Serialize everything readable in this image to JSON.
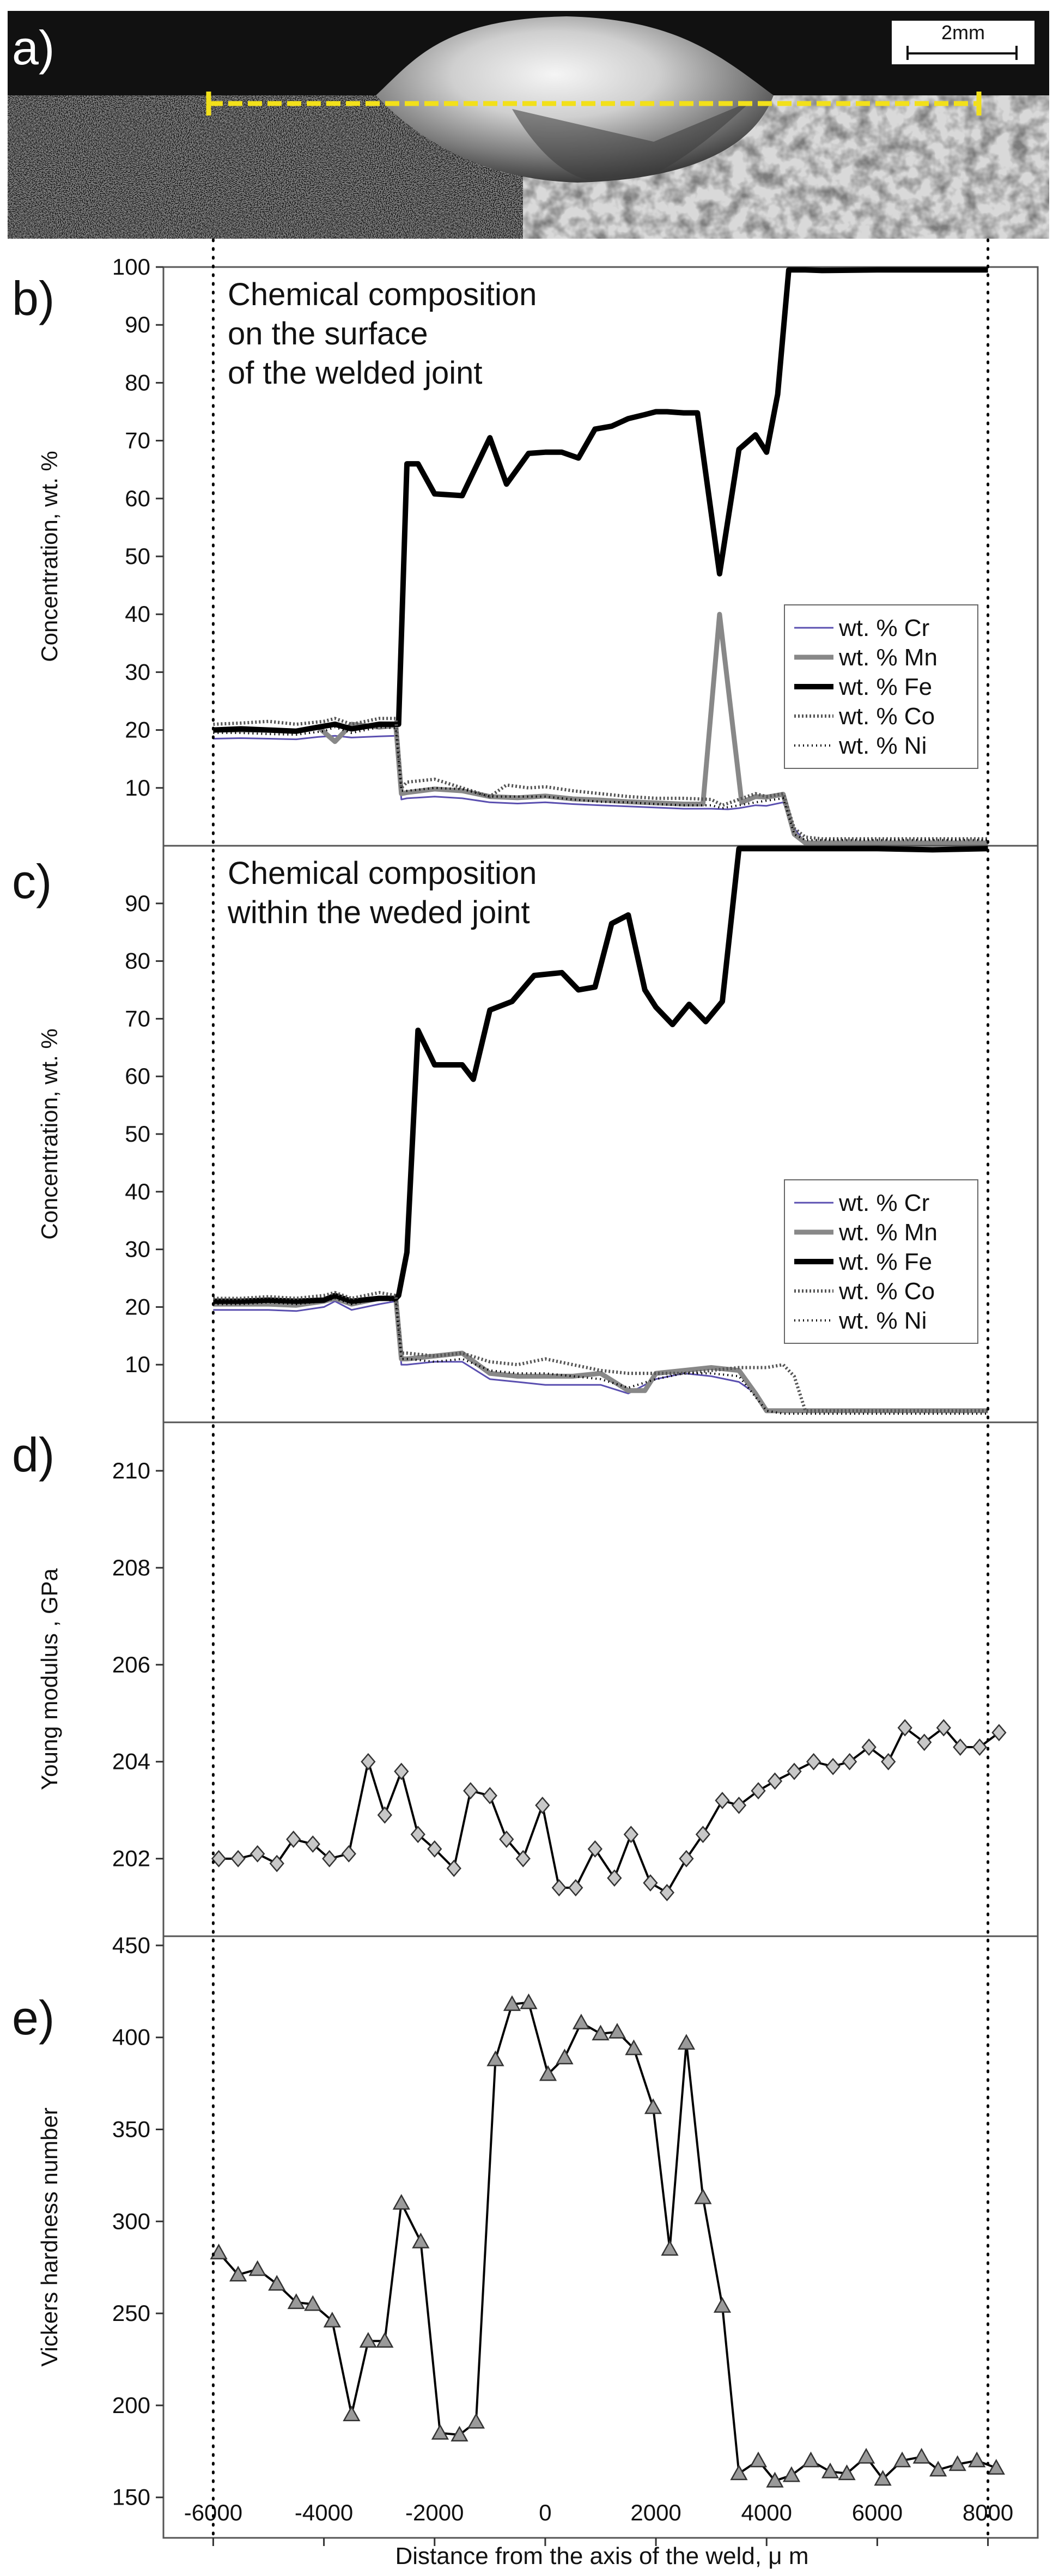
{
  "panels": {
    "a": "a)",
    "b": "b)",
    "c": "c)",
    "d": "d)",
    "e": "e)"
  },
  "micrograph": {
    "scale_bar_label": "2mm",
    "line_color": "#f2e01a"
  },
  "x_axis": {
    "label": "Distance from the axis of the weld, μ m",
    "ticks": [
      -6000,
      -4000,
      -2000,
      0,
      2000,
      4000,
      6000,
      8000
    ],
    "range": [
      -6900,
      8900
    ],
    "dotted_lines_at": [
      -6000,
      8000
    ]
  },
  "colors": {
    "cr": "#5a4fb0",
    "mn": "#888888",
    "fe": "#000000",
    "co": "#555555",
    "ni": "#000000"
  },
  "chart_data": [
    {
      "id": "b",
      "type": "line",
      "note": [
        "Chemical composition",
        "on the surface",
        "of the welded joint"
      ],
      "ylabel": "Concentration, wt. %",
      "ylim": [
        0,
        100
      ],
      "yticks": [
        10,
        20,
        30,
        40,
        50,
        60,
        70,
        80,
        90,
        100
      ],
      "legend": [
        "wt. % Cr",
        "wt. % Mn",
        "wt. % Fe",
        "wt. % Co",
        "wt. % Ni"
      ],
      "series": [
        {
          "name": "wt. % Cr",
          "x": [
            -6000,
            -5500,
            -5000,
            -4500,
            -4100,
            -3800,
            -3500,
            -3000,
            -2700,
            -2600,
            -2500,
            -2000,
            -1500,
            -1000,
            -500,
            0,
            500,
            1000,
            1500,
            2000,
            2500,
            3000,
            3300,
            3500,
            3800,
            4000,
            4300,
            4500,
            4700,
            5000,
            6000,
            7000,
            8000
          ],
          "values": [
            18.5,
            18.6,
            18.5,
            18.4,
            18.8,
            19.0,
            18.7,
            18.9,
            19.0,
            8,
            8.2,
            8.5,
            8.2,
            7.5,
            7.3,
            7.5,
            7.2,
            7.0,
            6.8,
            6.6,
            6.4,
            6.4,
            6.3,
            6.5,
            7.0,
            6.9,
            7.5,
            3,
            0.5,
            0.5,
            0.5,
            0.5,
            0.5
          ]
        },
        {
          "name": "wt. % Mn",
          "x": [
            -6000,
            -5500,
            -5000,
            -4500,
            -4100,
            -3800,
            -3500,
            -3000,
            -2700,
            -2600,
            -2500,
            -2000,
            -1500,
            -1000,
            -500,
            0,
            500,
            1000,
            1500,
            2000,
            2500,
            2850,
            3150,
            3550,
            3800,
            4000,
            4300,
            4500,
            4700,
            5000,
            6000,
            7000,
            8000
          ],
          "values": [
            20,
            20,
            20,
            19.8,
            20.5,
            18,
            21,
            20.5,
            20.8,
            9,
            9.2,
            9.8,
            9.5,
            8.5,
            8.3,
            8.6,
            8.1,
            7.9,
            7.6,
            7.4,
            7.2,
            7.2,
            40,
            7.5,
            8.5,
            8.4,
            8.9,
            2,
            0.5,
            0.5,
            0.5,
            0.5,
            0.5
          ]
        },
        {
          "name": "wt. % Fe",
          "x": [
            -6000,
            -5500,
            -5000,
            -4500,
            -4100,
            -3800,
            -3500,
            -3000,
            -2700,
            -2650,
            -2500,
            -2300,
            -2000,
            -1500,
            -1000,
            -700,
            -300,
            0,
            300,
            600,
            900,
            1200,
            1500,
            1800,
            2000,
            2200,
            2500,
            2750,
            3150,
            3500,
            3800,
            4000,
            4200,
            4400,
            4600,
            4700,
            5000,
            6000,
            7000,
            8000
          ],
          "values": [
            20,
            20.2,
            20,
            19.8,
            20.5,
            21,
            20.2,
            21,
            21,
            21,
            66,
            66,
            60.8,
            60.5,
            70.5,
            62.5,
            67.8,
            68,
            68,
            67,
            72,
            72.5,
            73.8,
            74.5,
            75,
            75,
            74.8,
            74.8,
            47,
            68.5,
            71,
            68,
            78,
            99.5,
            99.5,
            99.5,
            99.4,
            99.5,
            99.5,
            99.5
          ]
        },
        {
          "name": "wt. % Co",
          "x": [
            -6000,
            -5500,
            -5000,
            -4500,
            -4000,
            -3800,
            -3500,
            -3000,
            -2700,
            -2600,
            -2500,
            -2000,
            -1500,
            -1000,
            -700,
            -300,
            0,
            500,
            1000,
            1500,
            2000,
            2500,
            3000,
            3200,
            3500,
            3800,
            4000,
            4300,
            4500,
            4700,
            5000,
            6000,
            7000,
            8000
          ],
          "values": [
            21,
            21.2,
            21.5,
            21,
            21.5,
            22,
            21,
            22,
            22,
            10,
            11,
            11.5,
            10,
            8.5,
            10.5,
            10,
            10.2,
            9.5,
            9,
            8.5,
            8.2,
            8.2,
            8,
            7,
            8,
            9,
            8.5,
            9,
            3,
            1.5,
            1.2,
            1.2,
            1.2,
            1.2
          ]
        },
        {
          "name": "wt. % Ni",
          "x": [
            -6000,
            -5500,
            -5000,
            -4500,
            -4000,
            -3800,
            -3500,
            -3000,
            -2700,
            -2600,
            -2500,
            -2000,
            -1500,
            -1000,
            -500,
            0,
            500,
            1000,
            1500,
            2000,
            2500,
            3000,
            3200,
            3500,
            3800,
            4000,
            4300,
            4500,
            4700,
            5000,
            6000,
            7000,
            8000
          ],
          "values": [
            19.5,
            19.5,
            19.3,
            19.2,
            19.8,
            20.5,
            19.5,
            20.5,
            20.3,
            9.5,
            9.5,
            10,
            9.8,
            8.5,
            8.5,
            8.5,
            8,
            7.6,
            7.5,
            7.2,
            7,
            7,
            6.5,
            7,
            7.5,
            7.8,
            8.2,
            2,
            1,
            1,
            1,
            1,
            1
          ]
        }
      ]
    },
    {
      "id": "c",
      "type": "line",
      "note": [
        "Chemical composition",
        "within the weded joint"
      ],
      "ylabel": "Concentration, wt. %",
      "ylim": [
        0,
        100
      ],
      "yticks": [
        10,
        20,
        30,
        40,
        50,
        60,
        70,
        80,
        90
      ],
      "legend": [
        "wt. % Cr",
        "wt. % Mn",
        "wt. % Fe",
        "wt. % Co",
        "wt. % Ni"
      ],
      "series": [
        {
          "name": "wt. % Cr",
          "x": [
            -6000,
            -5500,
            -5000,
            -4500,
            -4000,
            -3800,
            -3500,
            -3000,
            -2700,
            -2600,
            -2500,
            -2000,
            -1500,
            -1000,
            -500,
            0,
            500,
            1000,
            1500,
            2000,
            2500,
            3000,
            3500,
            3800,
            4000,
            4300,
            4700,
            5000,
            6000,
            7000,
            8000
          ],
          "values": [
            19.5,
            19.5,
            19.5,
            19.3,
            20,
            21,
            19.5,
            20.5,
            21,
            10,
            10,
            10.5,
            10.5,
            7.5,
            7,
            6.5,
            6.5,
            6.5,
            5,
            7.5,
            8.5,
            8,
            7,
            5,
            2,
            2,
            2,
            2,
            2,
            2,
            2
          ]
        },
        {
          "name": "wt. % Mn",
          "x": [
            -6000,
            -5500,
            -5000,
            -4500,
            -4000,
            -3800,
            -3500,
            -3000,
            -2700,
            -2600,
            -2500,
            -2000,
            -1500,
            -1000,
            -500,
            0,
            500,
            1000,
            1500,
            1800,
            2000,
            2500,
            3000,
            3500,
            3800,
            4000,
            4300,
            4700,
            5000,
            6000,
            7000,
            8000
          ],
          "values": [
            20.5,
            20.5,
            20.5,
            20.3,
            21,
            21.5,
            20.5,
            21.5,
            21.5,
            11,
            11,
            11.5,
            12,
            8.5,
            8,
            8,
            8,
            8.5,
            5.5,
            5.5,
            8.5,
            9,
            9.5,
            9,
            5,
            2,
            2,
            2,
            2,
            2,
            2,
            2
          ]
        },
        {
          "name": "wt. % Fe",
          "x": [
            -6000,
            -5500,
            -5000,
            -4500,
            -4000,
            -3800,
            -3500,
            -3000,
            -2700,
            -2650,
            -2500,
            -2300,
            -2000,
            -1500,
            -1300,
            -1000,
            -600,
            -200,
            300,
            600,
            900,
            1200,
            1500,
            1800,
            2000,
            2300,
            2600,
            2900,
            3200,
            3500,
            3800,
            4000,
            4300,
            4600,
            5000,
            6000,
            7000,
            8000
          ],
          "values": [
            21,
            21,
            21.2,
            21,
            21.2,
            22,
            21,
            21.5,
            21.5,
            22,
            29.5,
            68,
            62,
            62,
            59.5,
            71.5,
            73,
            77.5,
            78,
            75,
            75.5,
            86.5,
            88,
            75,
            72,
            69,
            72.5,
            69.5,
            73,
            99.5,
            99.5,
            99.5,
            99.5,
            99.5,
            99.5,
            99.5,
            99.3,
            99.5
          ]
        },
        {
          "name": "wt. % Co",
          "x": [
            -6000,
            -5500,
            -5000,
            -4500,
            -4000,
            -3800,
            -3500,
            -3000,
            -2700,
            -2600,
            -2500,
            -2000,
            -1500,
            -1000,
            -500,
            0,
            500,
            1000,
            1500,
            2000,
            2500,
            3000,
            3500,
            4000,
            4300,
            4500,
            4700,
            5000,
            6000,
            7000,
            8000
          ],
          "values": [
            21.5,
            21.5,
            21.8,
            21.5,
            22,
            22.5,
            21.5,
            22.5,
            22,
            12,
            12,
            11.5,
            12,
            10.5,
            10,
            11,
            10,
            9,
            8.5,
            8.5,
            8.5,
            9,
            9.5,
            9.5,
            10,
            8,
            2,
            2,
            2,
            2,
            2
          ]
        },
        {
          "name": "wt. % Ni",
          "x": [
            -6000,
            -5500,
            -5000,
            -4500,
            -4000,
            -3800,
            -3500,
            -3000,
            -2700,
            -2600,
            -2500,
            -2000,
            -1500,
            -1000,
            -500,
            0,
            500,
            1000,
            1500,
            2000,
            2500,
            3000,
            3500,
            4000,
            4300,
            4700,
            5000,
            6000,
            7000,
            8000
          ],
          "values": [
            20.5,
            20.5,
            20.8,
            20.5,
            21,
            21.5,
            20.5,
            21.5,
            21,
            11,
            11,
            10.5,
            11,
            9,
            8.5,
            8.5,
            8,
            7.5,
            6,
            7.5,
            8.5,
            8.5,
            8,
            2,
            1.5,
            1.5,
            1.5,
            1.5,
            1.5,
            1.5
          ]
        }
      ]
    },
    {
      "id": "d",
      "type": "line",
      "ylabel": "Young modulus , GPa",
      "ylim": [
        200.4,
        211
      ],
      "yticks": [
        202,
        204,
        206,
        208,
        210
      ],
      "marker": "diamond",
      "series": [
        {
          "name": "Young modulus",
          "x": [
            -5900,
            -5550,
            -5200,
            -4850,
            -4550,
            -4200,
            -3900,
            -3550,
            -3200,
            -2900,
            -2600,
            -2300,
            -2000,
            -1650,
            -1350,
            -1000,
            -700,
            -400,
            -50,
            250,
            550,
            900,
            1250,
            1550,
            1900,
            2200,
            2550,
            2850,
            3200,
            3500,
            3850,
            4150,
            4500,
            4850,
            5200,
            5500,
            5850,
            6200,
            6500,
            6850,
            7200,
            7500,
            7850,
            8200
          ],
          "values": [
            202,
            202,
            202.1,
            201.9,
            202.4,
            202.3,
            202,
            202.1,
            204,
            202.9,
            203.8,
            202.5,
            202.2,
            201.8,
            203.4,
            203.3,
            202.4,
            202,
            203.1,
            201.4,
            201.4,
            202.2,
            201.6,
            202.5,
            201.5,
            201.3,
            202,
            202.5,
            203.2,
            203.1,
            203.4,
            203.6,
            203.8,
            204,
            203.9,
            204,
            204.3,
            204,
            204.7,
            204.4,
            204.7,
            204.3,
            204.3,
            204.6
          ]
        }
      ]
    },
    {
      "id": "e",
      "type": "line",
      "ylabel": "Vickers hardness number",
      "ylim": [
        128,
        455
      ],
      "yticks": [
        150,
        200,
        250,
        300,
        350,
        400,
        450
      ],
      "marker": "triangle",
      "series": [
        {
          "name": "Vickers hardness",
          "x": [
            -5900,
            -5550,
            -5200,
            -4850,
            -4500,
            -4200,
            -3850,
            -3500,
            -3200,
            -2900,
            -2600,
            -2250,
            -1900,
            -1550,
            -1250,
            -900,
            -600,
            -300,
            50,
            350,
            650,
            1000,
            1300,
            1600,
            1950,
            2250,
            2550,
            2850,
            3200,
            3500,
            3850,
            4150,
            4450,
            4800,
            5150,
            5450,
            5800,
            6100,
            6450,
            6800,
            7100,
            7450,
            7800,
            8150
          ],
          "values": [
            283,
            271,
            274,
            266,
            256,
            255,
            246,
            195,
            235,
            235,
            310,
            289,
            185,
            184,
            191,
            388,
            418,
            419,
            380,
            389,
            408,
            402,
            403,
            394,
            362,
            285,
            397,
            313,
            254,
            163,
            170,
            159,
            162,
            170,
            164,
            163,
            172,
            160,
            170,
            172,
            165,
            168,
            170,
            166
          ]
        }
      ]
    }
  ]
}
